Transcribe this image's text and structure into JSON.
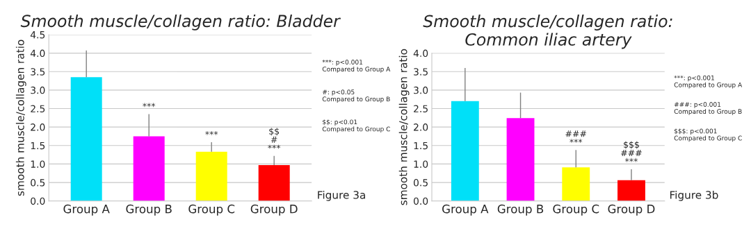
{
  "chart_data": [
    {
      "type": "bar",
      "title": "Smooth muscle/collagen ratio: Bladder",
      "ylabel": "smooth muscle/collagen ratio",
      "categories": [
        "Group A",
        "Group B",
        "Group C",
        "Group D"
      ],
      "values": [
        3.35,
        1.75,
        1.33,
        0.97
      ],
      "colors": [
        "#00e0f8",
        "#ff00ff",
        "#ffff00",
        "#ff0000"
      ],
      "errors": [
        [
          3.35,
          4.07
        ],
        [
          1.75,
          2.35
        ],
        [
          1.33,
          1.59
        ],
        [
          0.97,
          1.22
        ]
      ],
      "ylim": [
        0,
        4.5
      ],
      "yticks": [
        {
          "value": 0,
          "label": "0.0"
        },
        0.5,
        {
          "value": 1,
          "label": "1.0"
        },
        1.5,
        {
          "value": 2,
          "label": "2.0"
        },
        2.5,
        {
          "value": 3,
          "label": "3.0"
        },
        3.5,
        {
          "value": 4,
          "label": "4.0"
        },
        4.5
      ],
      "grid": "y",
      "legend": false,
      "annotations": [
        {
          "text": "***",
          "x": "Group B",
          "y": 2.35
        },
        {
          "text": "***",
          "x": "Group C",
          "y": 1.59
        },
        {
          "text": "$$\n#\n***",
          "x": "Group D",
          "y": 1.22
        },
        "***: p<0.001\nCompared to Group A",
        "#: p<0.05\nCompared to Group B",
        "$$: p<0.01\nCompared to Group C",
        "Figure 3a"
      ]
    },
    {
      "type": "bar",
      "title": "Smooth muscle/collagen ratio:\nCommon iliac artery",
      "ylabel": "smooth muscle/collagen ratio",
      "categories": [
        "Group A",
        "Group B",
        "Group C",
        "Group D"
      ],
      "values": [
        2.7,
        2.24,
        0.91,
        0.56
      ],
      "colors": [
        "#00e0f8",
        "#ff00ff",
        "#ffff00",
        "#ff0000"
      ],
      "errors": [
        [
          2.7,
          3.6
        ],
        [
          2.24,
          2.93
        ],
        [
          0.91,
          1.38
        ],
        [
          0.56,
          0.86
        ]
      ],
      "ylim": [
        0,
        4.0
      ],
      "yticks": [
        {
          "value": 0,
          "label": "0.0"
        },
        0.5,
        {
          "value": 1,
          "label": "1.0"
        },
        1.5,
        {
          "value": 2,
          "label": "2.0"
        },
        2.5,
        {
          "value": 3,
          "label": "3.0"
        },
        3.5,
        {
          "value": 4,
          "label": "4.0"
        }
      ],
      "grid": "y",
      "legend": false,
      "annotations": [
        {
          "text": "###\n***",
          "x": "Group C",
          "y": 1.38
        },
        {
          "text": "$$$\n###\n***",
          "x": "Group D",
          "y": 0.86
        },
        "***: p<0.001\nCompared to Group A",
        "###: p<0.001\nCompared to Group B",
        "$$$: p<0.001\nCompared to Group C",
        "Figure 3b"
      ]
    }
  ]
}
